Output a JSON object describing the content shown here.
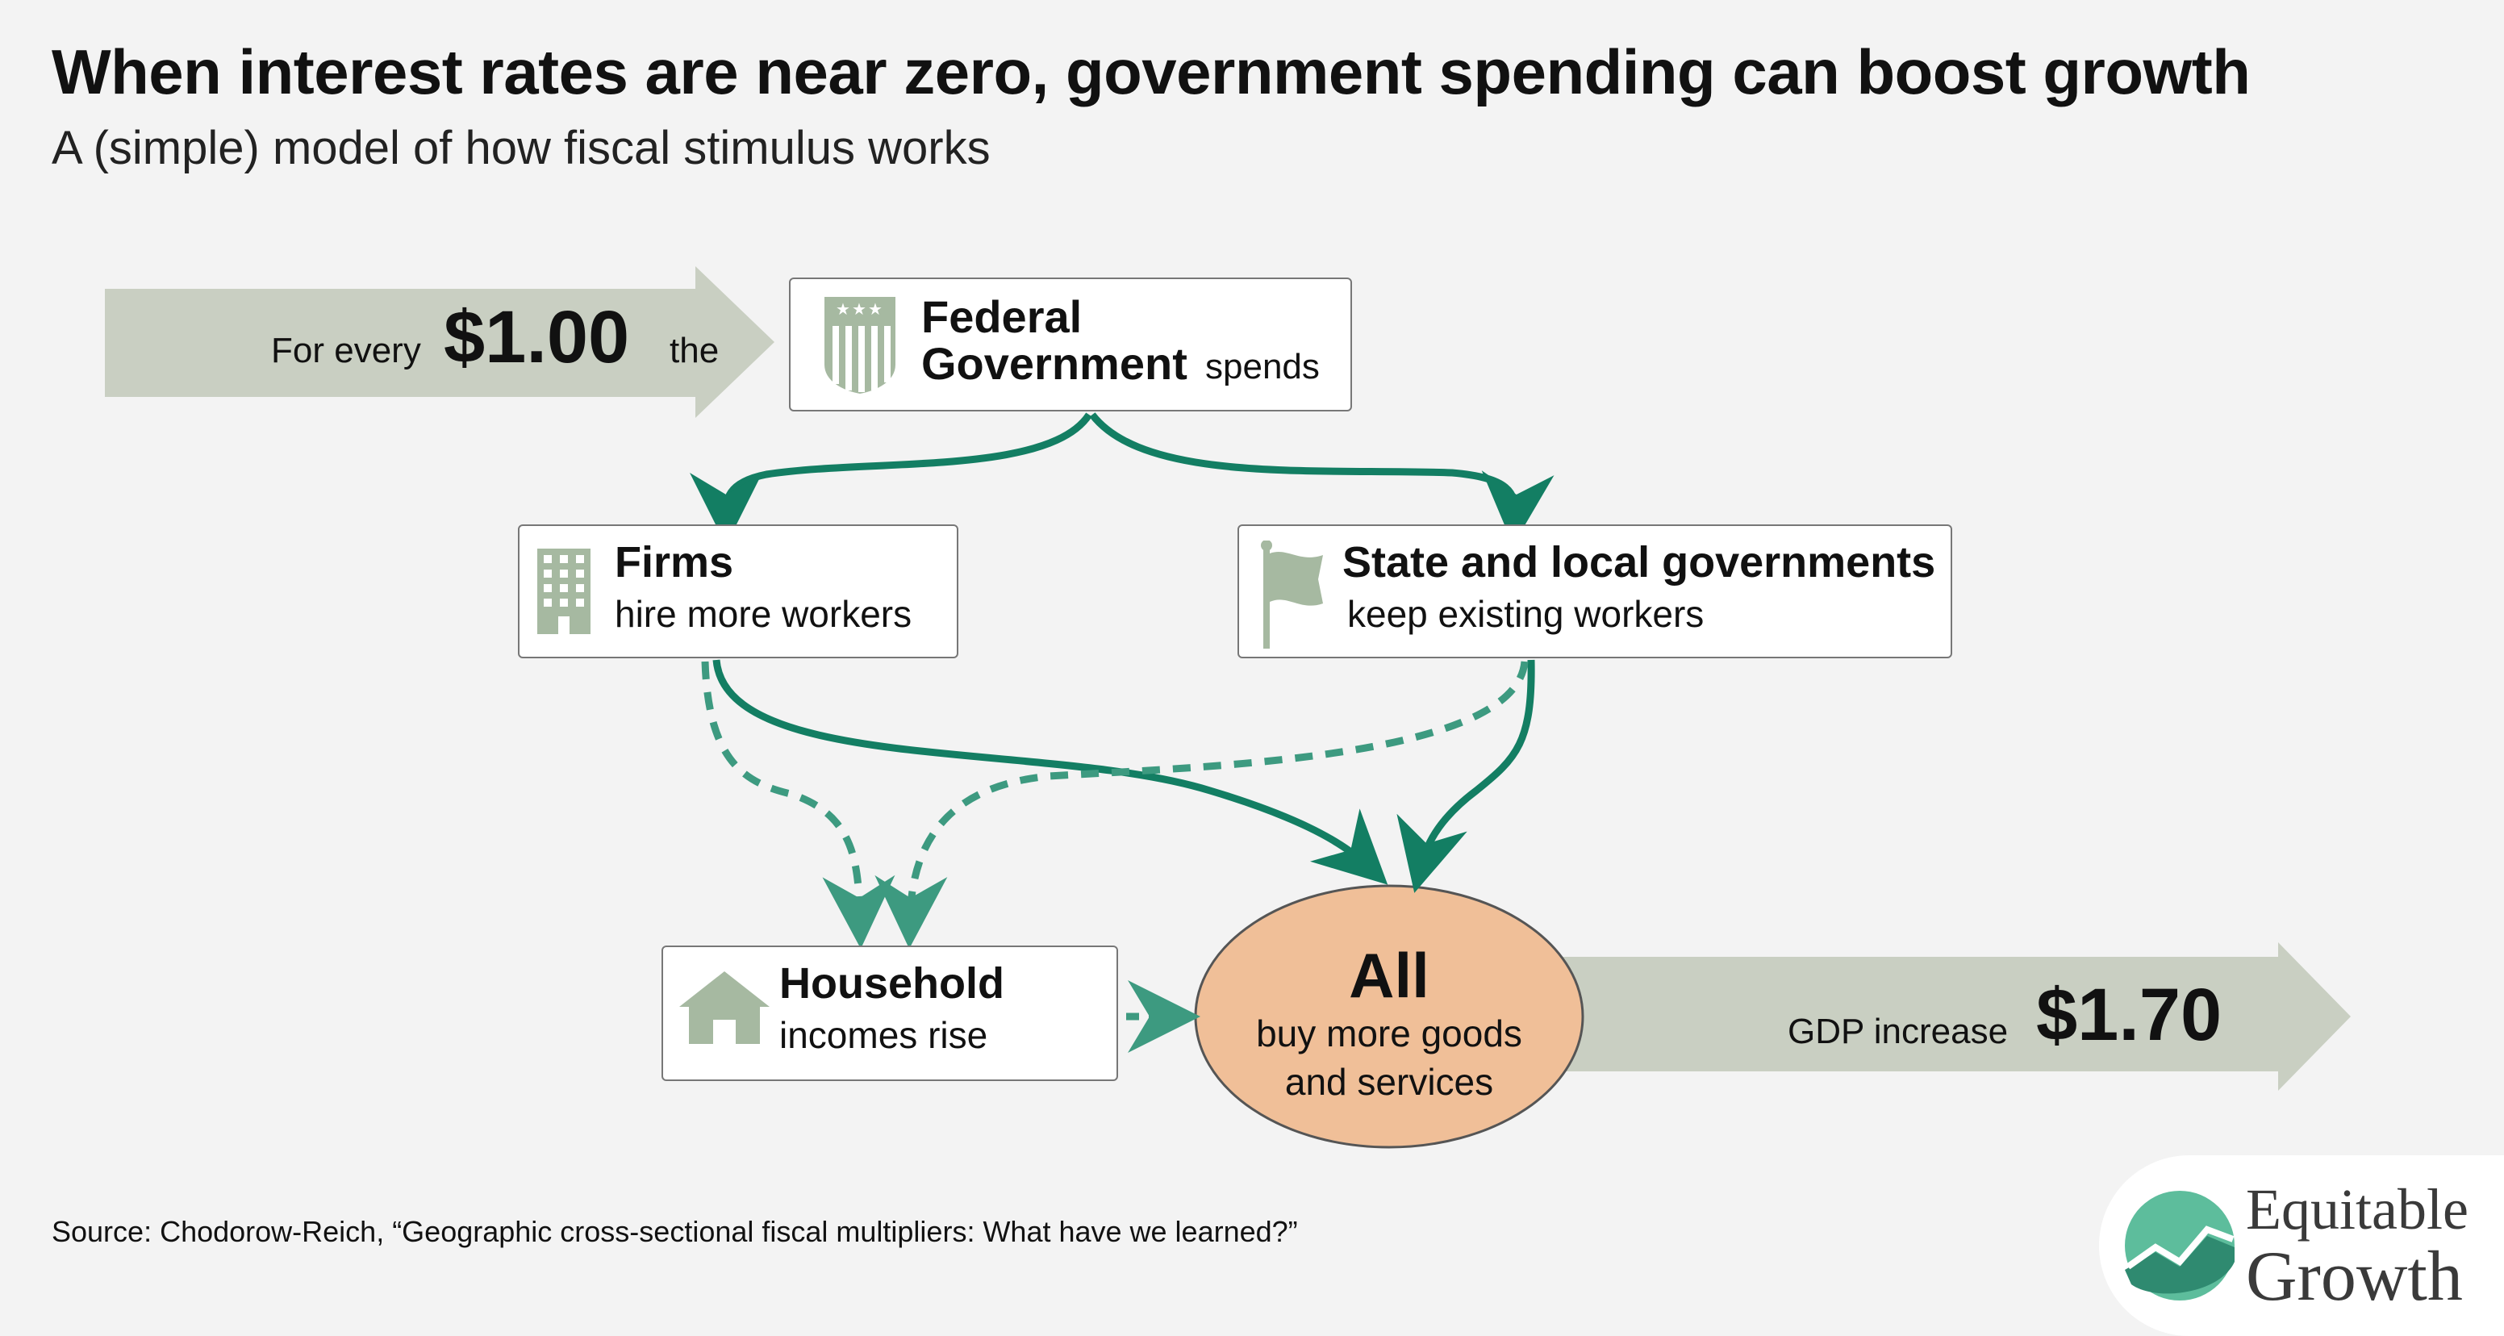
{
  "title": "When interest rates are near zero, government spending can boost growth",
  "subtitle": "A (simple) model of how fiscal stimulus works",
  "input_arrow": {
    "prefix": "For every",
    "amount": "$1.00",
    "suffix": "the"
  },
  "federal": {
    "line1": "Federal",
    "line2": "Government",
    "verb": "spends",
    "icon": "shield-icon"
  },
  "firms": {
    "title": "Firms",
    "desc": "hire more workers",
    "icon": "building-icon"
  },
  "state": {
    "title": "State and local governments",
    "desc": "keep existing workers",
    "icon": "flag-icon"
  },
  "household": {
    "title": "Household",
    "desc": "incomes rise",
    "icon": "house-icon"
  },
  "all": {
    "title": "All",
    "line1": "buy more goods",
    "line2": "and services"
  },
  "output_arrow": {
    "prefix": "GDP increase",
    "amount": "$1.70"
  },
  "source": "Source: Chodorow-Reich, “Geographic cross-sectional fiscal multipliers: What have we learned?”",
  "logo": {
    "line1": "Equitable",
    "line2": "Growth"
  },
  "colors": {
    "arrow_green": "#137e63",
    "dashed_green": "#3d9a80",
    "icon_green": "#a6b9a1",
    "big_arrow": "#c9cfc2",
    "ellipse_fill": "#f0bf98",
    "logo_teal": "#5dbd9c"
  }
}
